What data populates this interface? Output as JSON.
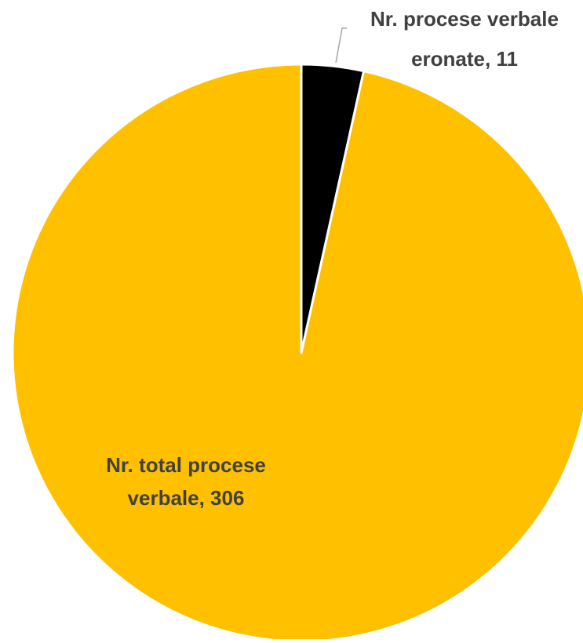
{
  "chart_data": {
    "type": "pie",
    "title": "",
    "slices": [
      {
        "label_line1": "Nr. procese verbale",
        "label_line2": "eronate, 11",
        "category": "Nr. procese verbale eronate",
        "value": 11,
        "color": "#000000"
      },
      {
        "label_line1": "Nr. total procese",
        "label_line2": "verbale, 306",
        "category": "Nr. total procese verbale",
        "value": 306,
        "color": "#FFC000"
      }
    ],
    "start_angle": "12 o'clock",
    "direction": "clockwise",
    "legend": "none",
    "slice_border_color": "#FFFFFF",
    "label_text_color": "#404040",
    "leader_line_color": "#A6A6A6"
  }
}
